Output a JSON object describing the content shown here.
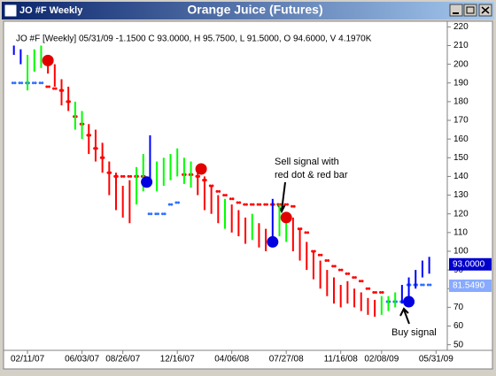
{
  "window_title": "JO #F Weekly",
  "chart_data": {
    "type": "ohlc",
    "title": "Orange Juice (Futures)",
    "info": "JO #F [Weekly] 05/31/09  -1.1500 C 93.0000, H 95.7500, L 91.5000, O 94.6000, V 4.1970K",
    "x": [
      -4,
      -2,
      0,
      2,
      4,
      6,
      8,
      10,
      12,
      14,
      16,
      18,
      20,
      22,
      24,
      26,
      28,
      30,
      32,
      34,
      36,
      38,
      40,
      42,
      44,
      46,
      48,
      50,
      52,
      54,
      56,
      58,
      60,
      62,
      64,
      66,
      68,
      70,
      72,
      74,
      76,
      78,
      80,
      82,
      84,
      86,
      88,
      90,
      92,
      94,
      96,
      98,
      100,
      102,
      104,
      106,
      108,
      110,
      112,
      114,
      116,
      118
    ],
    "high": [
      210,
      208,
      205,
      208,
      210,
      205,
      200,
      192,
      188,
      180,
      175,
      168,
      165,
      158,
      148,
      142,
      135,
      138,
      145,
      152,
      162,
      148,
      150,
      152,
      155,
      150,
      148,
      145,
      140,
      135,
      130,
      128,
      125,
      122,
      118,
      120,
      115,
      112,
      128,
      125,
      120,
      118,
      112,
      105,
      100,
      95,
      90,
      86,
      82,
      84,
      80,
      78,
      75,
      74,
      76,
      76,
      78,
      82,
      86,
      90,
      95,
      97
    ],
    "low": [
      205,
      200,
      186,
      196,
      198,
      195,
      188,
      178,
      175,
      165,
      160,
      152,
      148,
      142,
      130,
      122,
      118,
      115,
      125,
      132,
      138,
      132,
      135,
      138,
      140,
      136,
      134,
      130,
      122,
      120,
      115,
      112,
      110,
      108,
      104,
      106,
      102,
      100,
      104,
      108,
      105,
      100,
      95,
      90,
      85,
      80,
      76,
      72,
      70,
      72,
      70,
      68,
      66,
      65,
      66,
      68,
      70,
      72,
      75,
      80,
      86,
      88
    ],
    "colors": [
      "blue",
      "blue",
      "lime",
      "lime",
      "lime",
      "red",
      "red",
      "red",
      "red",
      "lime",
      "lime",
      "red",
      "red",
      "red",
      "red",
      "red",
      "red",
      "red",
      "lime",
      "lime",
      "blue",
      "lime",
      "lime",
      "lime",
      "lime",
      "lime",
      "lime",
      "red",
      "red",
      "red",
      "red",
      "lime",
      "red",
      "red",
      "red",
      "lime",
      "red",
      "red",
      "blue",
      "lime",
      "lime",
      "red",
      "red",
      "red",
      "red",
      "red",
      "red",
      "red",
      "red",
      "red",
      "red",
      "red",
      "red",
      "red",
      "lime",
      "lime",
      "lime",
      "blue",
      "blue",
      "blue",
      "blue",
      "blue"
    ],
    "red_stop": {
      "color": "#ff0000",
      "values": [
        null,
        null,
        null,
        null,
        null,
        188,
        187,
        186,
        180,
        172,
        168,
        162,
        155,
        150,
        142,
        140,
        140,
        140,
        140,
        140,
        null,
        null,
        null,
        null,
        null,
        141,
        141,
        140,
        138,
        135,
        132,
        130,
        128,
        126,
        125,
        125,
        125,
        125,
        125,
        125,
        125,
        124,
        112,
        110,
        100,
        98,
        95,
        92,
        90,
        88,
        86,
        84,
        80,
        78,
        78,
        null,
        null,
        null,
        null,
        null,
        null,
        null
      ]
    },
    "blue_stop": {
      "color": "#3070ff",
      "values": [
        190,
        190,
        190,
        190,
        190,
        null,
        null,
        null,
        null,
        null,
        null,
        null,
        null,
        null,
        null,
        null,
        null,
        null,
        null,
        null,
        120,
        120,
        120,
        125,
        126,
        null,
        null,
        null,
        null,
        null,
        null,
        null,
        null,
        null,
        null,
        null,
        null,
        null,
        null,
        null,
        null,
        null,
        null,
        null,
        null,
        null,
        null,
        null,
        null,
        null,
        null,
        null,
        null,
        null,
        null,
        73,
        73,
        73,
        82,
        82,
        82,
        82
      ]
    },
    "signals": [
      {
        "x": 6,
        "value": 202,
        "color": "#e00000"
      },
      {
        "x": 35,
        "value": 137,
        "color": "#0000e0"
      },
      {
        "x": 51,
        "value": 144,
        "color": "#e00000"
      },
      {
        "x": 72,
        "value": 105,
        "color": "#0000e0"
      },
      {
        "x": 76,
        "value": 118,
        "color": "#e00000"
      },
      {
        "x": 112,
        "value": 73,
        "color": "#0000e0"
      }
    ],
    "price_markers": [
      {
        "value": 93,
        "label": "93.0000",
        "color": "#0000cc"
      },
      {
        "value": 81.549,
        "label": "81.5490",
        "color": "#88aaff"
      }
    ],
    "annotations": [
      "Sell signal with",
      "red dot & red bar",
      "Buy signal"
    ],
    "xlim": [
      -6,
      122
    ],
    "ylim": [
      47,
      223
    ],
    "xticks": [
      {
        "value": 0,
        "label": "02/11/07"
      },
      {
        "value": 16,
        "label": "06/03/07"
      },
      {
        "value": 28,
        "label": "08/26/07"
      },
      {
        "value": 44,
        "label": "12/16/07"
      },
      {
        "value": 60,
        "label": "04/06/08"
      },
      {
        "value": 76,
        "label": "07/27/08"
      },
      {
        "value": 92,
        "label": "11/16/08"
      },
      {
        "value": 104,
        "label": "02/08/09"
      },
      {
        "value": 120,
        "label": "05/31/09"
      }
    ],
    "yticks": [
      50,
      60,
      70,
      80,
      90,
      100,
      110,
      120,
      130,
      140,
      150,
      160,
      170,
      180,
      190,
      200,
      210,
      220
    ]
  }
}
